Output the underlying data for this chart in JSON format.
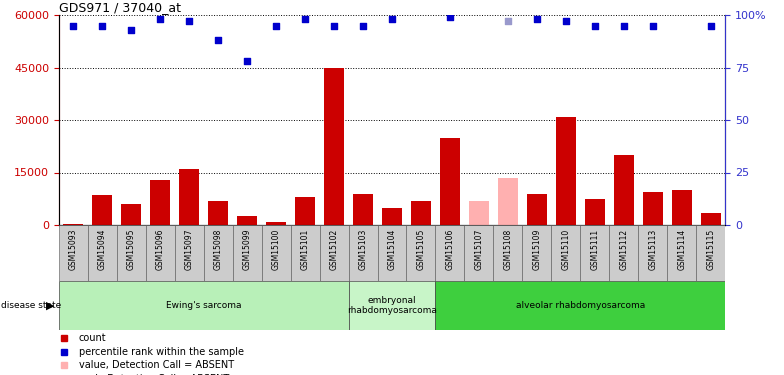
{
  "title": "GDS971 / 37040_at",
  "samples": [
    "GSM15093",
    "GSM15094",
    "GSM15095",
    "GSM15096",
    "GSM15097",
    "GSM15098",
    "GSM15099",
    "GSM15100",
    "GSM15101",
    "GSM15102",
    "GSM15103",
    "GSM15104",
    "GSM15105",
    "GSM15106",
    "GSM15107",
    "GSM15108",
    "GSM15109",
    "GSM15110",
    "GSM15111",
    "GSM15112",
    "GSM15113",
    "GSM15114",
    "GSM15115"
  ],
  "counts": [
    150,
    8500,
    6000,
    13000,
    16000,
    7000,
    2500,
    900,
    8000,
    45000,
    9000,
    5000,
    7000,
    25000,
    7000,
    13500,
    9000,
    31000,
    7500,
    20000,
    9500,
    10000,
    3500
  ],
  "absent_count": [
    false,
    false,
    false,
    false,
    false,
    false,
    false,
    false,
    false,
    false,
    false,
    false,
    false,
    false,
    true,
    true,
    false,
    false,
    false,
    false,
    false,
    false,
    false
  ],
  "percentile_ranks": [
    95,
    95,
    93,
    98,
    97,
    88,
    78,
    95,
    98,
    95,
    95,
    98,
    null,
    99,
    null,
    97,
    98,
    97,
    95,
    95,
    95,
    null,
    95
  ],
  "absent_rank": [
    false,
    false,
    false,
    false,
    false,
    false,
    false,
    false,
    false,
    false,
    false,
    false,
    false,
    false,
    false,
    true,
    false,
    false,
    false,
    false,
    false,
    false,
    false
  ],
  "disease_groups": [
    {
      "label": "Ewing's sarcoma",
      "start": 0,
      "end": 10,
      "color": "#b8f0b8"
    },
    {
      "label": "embryonal\nrhabdomyosarcoma",
      "start": 10,
      "end": 13,
      "color": "#c8f5c8"
    },
    {
      "label": "alveolar rhabdomyosarcoma",
      "start": 13,
      "end": 23,
      "color": "#3ecf3e"
    }
  ],
  "ylim_left": [
    0,
    60000
  ],
  "ylim_right": [
    0,
    100
  ],
  "yticks_left": [
    0,
    15000,
    30000,
    45000,
    60000
  ],
  "yticks_right": [
    0,
    25,
    50,
    75,
    100
  ],
  "bar_color_normal": "#cc0000",
  "bar_color_absent": "#ffb0b0",
  "dot_color_normal": "#0000cc",
  "dot_color_absent": "#9999cc",
  "bg_color": "#ffffff",
  "tick_label_color_left": "#cc0000",
  "tick_label_color_right": "#3333cc",
  "legend": [
    {
      "color": "#cc0000",
      "label": "count",
      "marker": "s"
    },
    {
      "color": "#0000cc",
      "label": "percentile rank within the sample",
      "marker": "s"
    },
    {
      "color": "#ffb0b0",
      "label": "value, Detection Call = ABSENT",
      "marker": "s"
    },
    {
      "color": "#9999cc",
      "label": "rank, Detection Call = ABSENT",
      "marker": "s"
    }
  ]
}
